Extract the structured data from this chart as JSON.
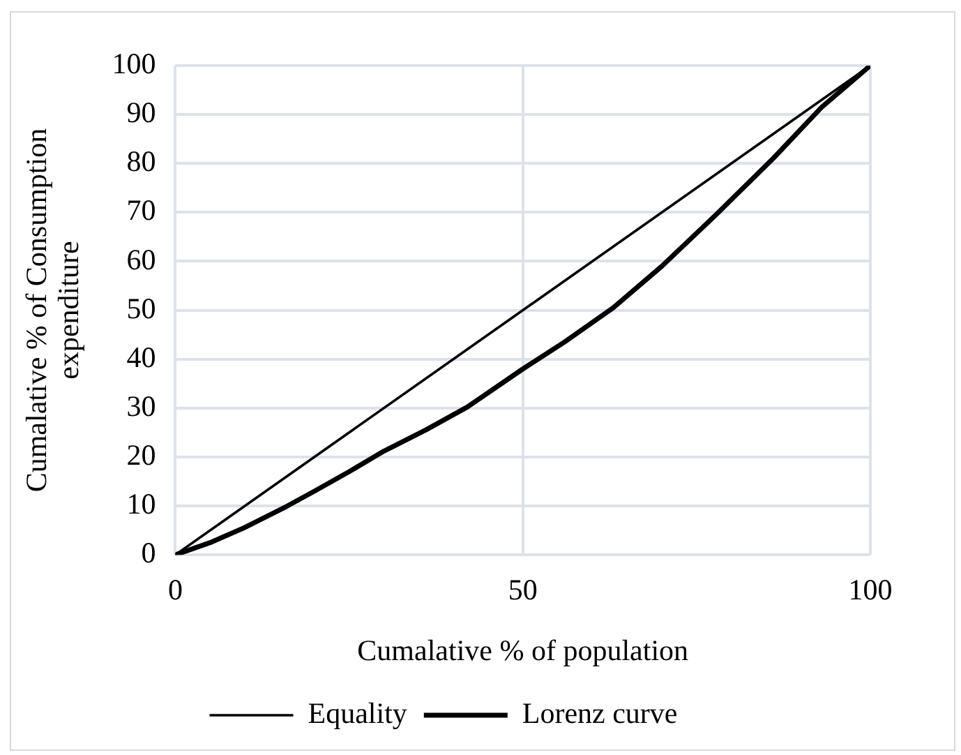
{
  "chart_data": {
    "type": "line",
    "xlabel": "Cumalative % of population",
    "ylabel": "Cumalative % of Consumption expenditure",
    "series": [
      {
        "name": "Equality",
        "color": "#000000",
        "x": [
          0,
          100
        ],
        "values": [
          0,
          100
        ]
      },
      {
        "name": "Lorenz curve",
        "color": "#000000",
        "x": [
          0,
          5,
          10,
          16,
          20,
          25,
          30,
          36,
          42,
          50,
          56,
          63,
          70,
          78,
          86,
          93,
          100
        ],
        "values": [
          0,
          2.5,
          5.6,
          9.9,
          13,
          17,
          21.2,
          25.5,
          30.2,
          38,
          43.5,
          50.5,
          59,
          69.8,
          81,
          91.5,
          100
        ]
      }
    ],
    "xlim": [
      0,
      100
    ],
    "xticks": [
      0,
      50,
      100
    ],
    "ylim": [
      0,
      100
    ],
    "yticks": [
      0,
      10,
      20,
      30,
      40,
      50,
      60,
      70,
      80,
      90,
      100
    ],
    "grid": true,
    "legend": "bottom",
    "marker": "none",
    "line_style": "solid"
  }
}
